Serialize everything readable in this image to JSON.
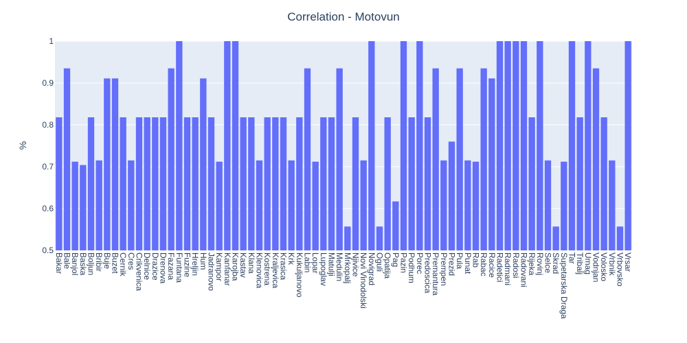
{
  "chart_data": {
    "type": "bar",
    "title": "Correlation - Motovun",
    "xlabel": "",
    "ylabel": "%",
    "ylim": [
      0.5,
      1.0
    ],
    "yticks": [
      "0.5",
      "0.6",
      "0.7",
      "0.8",
      "0.9",
      "1"
    ],
    "grid": true,
    "categories": [
      "Bakar",
      "Bale",
      "Banjol",
      "Baska",
      "Boljun",
      "Bribir",
      "Buje",
      "Buzet",
      "Cernik",
      "Cres",
      "Crikvenica",
      "Delnice",
      "Drazice",
      "Drenova",
      "Fazana",
      "Funtana",
      "Fuzine",
      "Hreljin",
      "Hum",
      "Jadranovo",
      "Kampor",
      "Kanfanar",
      "Karojba",
      "Kastav",
      "Klana",
      "Klenovica",
      "Kostrena",
      "Kraljevica",
      "Krasica",
      "Krk",
      "Kukuljanovo",
      "Labin",
      "Lopar",
      "Lupoglav",
      "Matulji",
      "Medulin",
      "Mrkopalj",
      "Njivice",
      "Novi Vinodolski",
      "Novigrad",
      "Oguli",
      "Opatija",
      "Pag",
      "Pazin",
      "Podhum",
      "Porec",
      "Predoscica",
      "Premantura",
      "Prempen",
      "Prezid",
      "Pula",
      "Punat",
      "Rab",
      "Rabac",
      "Racice",
      "Radetici",
      "Radmani",
      "Radosi",
      "Radovani",
      "Rijeka",
      "Rovinj",
      "Selce",
      "Skrad",
      "Supetarska Draga",
      "Tar",
      "Tribalj",
      "Umag",
      "Vodnjan",
      "Volosko",
      "Vrbnik",
      "Vrbovsko",
      "Vrsar"
    ],
    "series": [
      {
        "values": [
          0.818,
          0.935,
          0.712,
          0.704,
          0.818,
          0.715,
          0.911,
          0.911,
          0.818,
          0.715,
          0.818,
          0.818,
          0.818,
          0.818,
          0.935,
          1.0,
          0.818,
          0.818,
          0.911,
          0.818,
          0.712,
          1.0,
          1.0,
          0.818,
          0.818,
          0.715,
          0.818,
          0.818,
          0.818,
          0.715,
          0.818,
          0.935,
          0.712,
          0.818,
          0.818,
          0.935,
          0.557,
          0.818,
          0.715,
          1.0,
          0.557,
          0.818,
          0.617,
          1.0,
          0.818,
          1.0,
          0.818,
          0.935,
          0.715,
          0.76,
          0.935,
          0.715,
          0.712,
          0.935,
          0.911,
          1.0,
          1.0,
          1.0,
          1.0,
          0.818,
          1.0,
          0.715,
          0.557,
          0.712,
          1.0,
          0.818,
          1.0,
          0.935,
          0.818,
          0.715,
          0.557,
          1.0
        ]
      }
    ],
    "colors": {
      "bar": "#636efa",
      "plot_bg": "#e5ecf6",
      "grid": "#ffffff",
      "text": "#2a3f5f"
    }
  }
}
